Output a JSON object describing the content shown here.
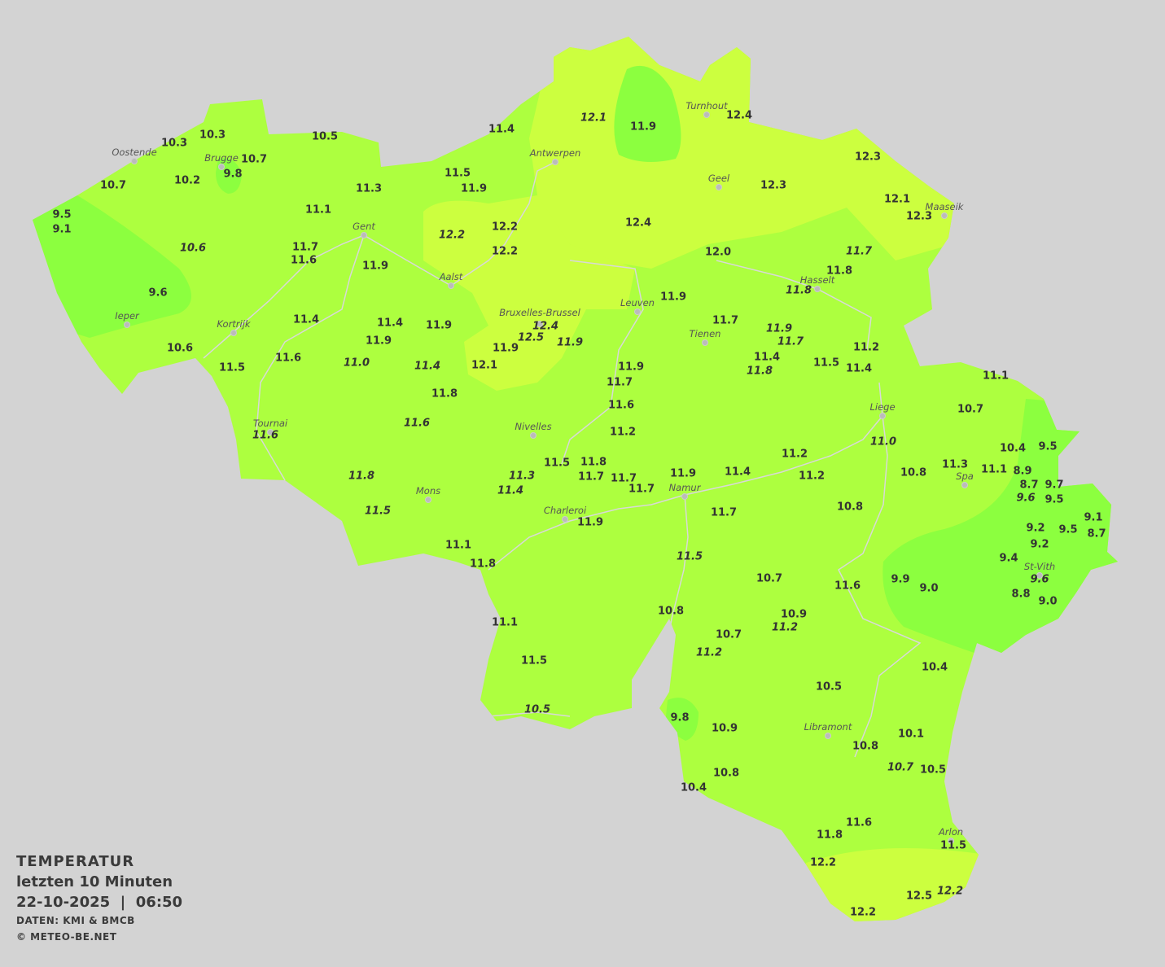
{
  "legend": {
    "title": "TEMPERATUR",
    "period": "letzten 10 Minuten",
    "datetime": "22-10-2025  |  06:50",
    "source": "DATEN: KMI & BMCB",
    "copyright": "© METEO-BE.NET"
  },
  "colors": {
    "background": "#d3d3d3",
    "temp_9_to_10": "#8cff3f",
    "temp_10_to_12": "#adff3f",
    "temp_12_plus": "#ccff3f",
    "text": "#333333"
  },
  "cities": [
    "Oostende",
    "Brugge",
    "Antwerpen",
    "Turnhout",
    "Geel",
    "Maaseik",
    "Gent",
    "Aalst",
    "Hasselt",
    "Leuven",
    "Bruxelles-Brussel",
    "Ieper",
    "Kortrijk",
    "Tienen",
    "Liege",
    "Tournai",
    "Nivelles",
    "Spa",
    "Mons",
    "Namur",
    "Charleroi",
    "St-Vith",
    "Libramont",
    "Arlon"
  ],
  "readings": [
    "10.3",
    "10.3",
    "10.5",
    "11.4",
    "12.1",
    "11.9",
    "12.4",
    "12.3",
    "10.7",
    "9.8",
    "10.7",
    "10.2",
    "11.5",
    "11.9",
    "11.3",
    "12.3",
    "12.1",
    "12.3",
    "9.5",
    "9.1",
    "11.1",
    "12.4",
    "12.2",
    "12.2",
    "12.2",
    "10.6",
    "11.7",
    "11.6",
    "11.9",
    "12.0",
    "11.7",
    "11.8",
    "11.8",
    "9.6",
    "11.9",
    "11.7",
    "11.4",
    "11.4",
    "11.9",
    "12.4",
    "12.5",
    "11.9",
    "11.9",
    "11.9",
    "11.7",
    "10.6",
    "11.6",
    "11.0",
    "11.4",
    "11.9",
    "12.1",
    "11.9",
    "11.4",
    "11.8",
    "11.5",
    "11.2",
    "11.4",
    "11.1",
    "11.5",
    "11.7",
    "11.8",
    "11.6",
    "10.7",
    "11.6",
    "11.6",
    "11.2",
    "11.0",
    "10.4",
    "9.5",
    "11.2",
    "11.5",
    "11.8",
    "11.3",
    "11.7",
    "11.7",
    "11.9",
    "11.4",
    "11.2",
    "10.8",
    "11.3",
    "11.1",
    "8.9",
    "8.7",
    "9.7",
    "9.6",
    "9.5",
    "11.8",
    "11.4",
    "11.7",
    "11.5",
    "11.9",
    "11.7",
    "10.8",
    "9.2",
    "9.5",
    "9.1",
    "8.7",
    "9.2",
    "9.4",
    "11.1",
    "11.8",
    "11.5",
    "10.7",
    "11.6",
    "9.9",
    "9.0",
    "9.6",
    "8.8",
    "9.0",
    "10.8",
    "10.9",
    "11.2",
    "11.1",
    "10.7",
    "11.2",
    "11.5",
    "10.4",
    "10.5",
    "10.5",
    "9.8",
    "10.9",
    "10.1",
    "10.8",
    "10.7",
    "10.5",
    "10.8",
    "10.4",
    "11.6",
    "11.8",
    "11.5",
    "12.2",
    "12.5",
    "12.2",
    "12.2"
  ]
}
